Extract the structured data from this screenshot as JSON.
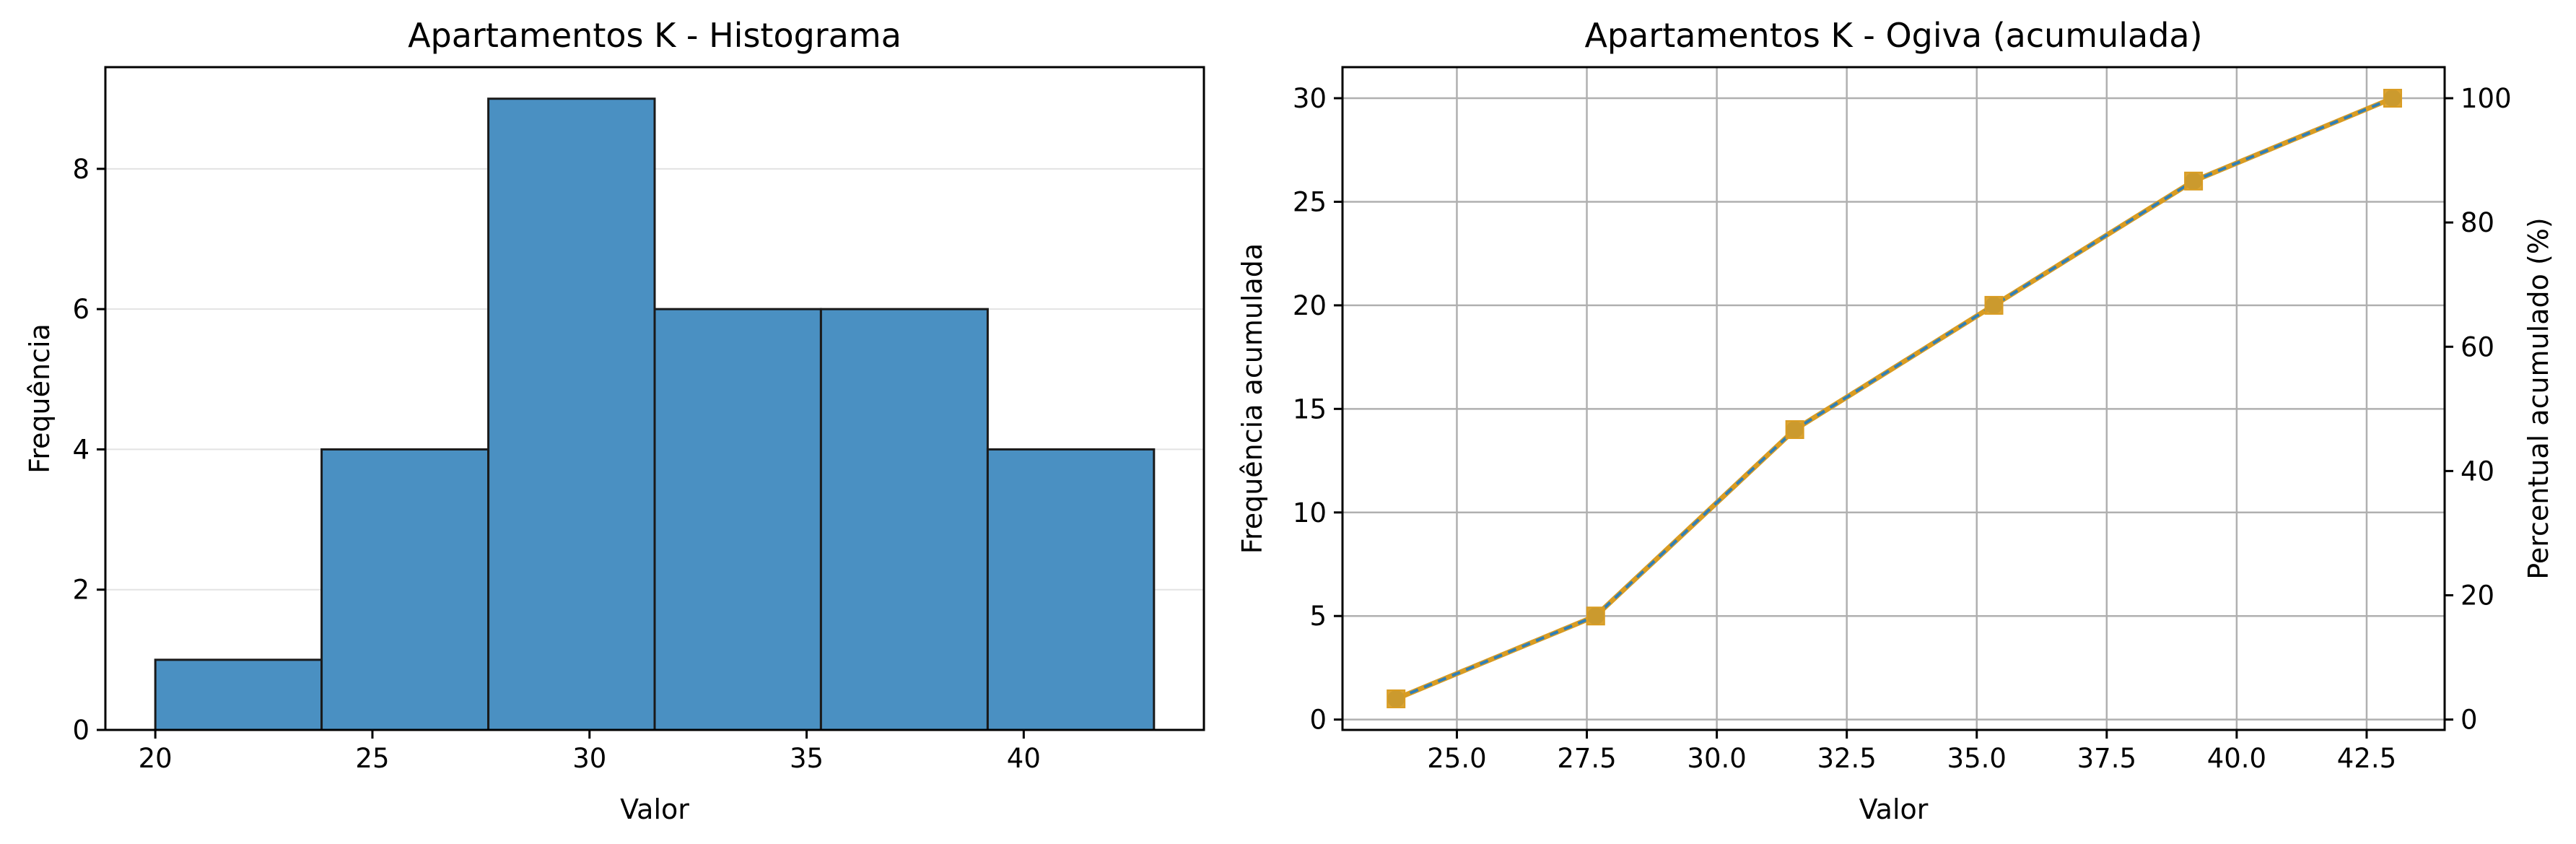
{
  "chart_data": [
    {
      "type": "bar",
      "title": "Apartamentos K - Histograma",
      "xlabel": "Valor",
      "ylabel": "Frequência",
      "bins": [
        {
          "start": 20.0,
          "end": 23.83,
          "count": 1
        },
        {
          "start": 23.83,
          "end": 27.67,
          "count": 4
        },
        {
          "start": 27.67,
          "end": 31.5,
          "count": 9
        },
        {
          "start": 31.5,
          "end": 35.33,
          "count": 6
        },
        {
          "start": 35.33,
          "end": 39.17,
          "count": 6
        },
        {
          "start": 39.17,
          "end": 43.0,
          "count": 4
        }
      ],
      "xlim": [
        18.85,
        44.15
      ],
      "ylim": [
        0,
        9.45
      ],
      "xticks": [
        20,
        25,
        30,
        35,
        40
      ],
      "xtick_labels": [
        "20",
        "25",
        "30",
        "35",
        "40"
      ],
      "yticks": [
        0,
        2,
        4,
        6,
        8
      ],
      "ytick_labels": [
        "0",
        "2",
        "4",
        "6",
        "8"
      ],
      "grid": "y",
      "bar_color": "#4a90c2",
      "edge_color": "#1a1a1a"
    },
    {
      "type": "line",
      "title": "Apartamentos K - Ogiva (acumulada)",
      "xlabel": "Valor",
      "ylabel": "Frequência acumulada",
      "ylabel_right": "Percentual acumulado (%)",
      "x": [
        23.83,
        27.67,
        31.5,
        35.33,
        39.17,
        43.0
      ],
      "y": [
        1,
        5,
        14,
        20,
        26,
        30
      ],
      "y_percent": [
        3.33,
        16.67,
        46.67,
        66.67,
        86.67,
        100.0
      ],
      "xlim": [
        22.8,
        44.0
      ],
      "ylim": [
        -0.5,
        31.5
      ],
      "ylim_right": [
        -1.67,
        105.0
      ],
      "xticks": [
        25.0,
        27.5,
        30.0,
        32.5,
        35.0,
        37.5,
        40.0,
        42.5
      ],
      "xtick_labels": [
        "25.0",
        "27.5",
        "30.0",
        "32.5",
        "35.0",
        "37.5",
        "40.0",
        "42.5"
      ],
      "yticks": [
        0,
        5,
        10,
        15,
        20,
        25,
        30
      ],
      "ytick_labels": [
        "0",
        "5",
        "10",
        "15",
        "20",
        "25",
        "30"
      ],
      "yticks_right": [
        0,
        20,
        40,
        60,
        80,
        100
      ],
      "ytick_labels_right": [
        "0",
        "20",
        "40",
        "60",
        "80",
        "100"
      ],
      "grid": "both",
      "line_color": "#2f7fb8",
      "overlay_color": "#d99c22"
    }
  ]
}
